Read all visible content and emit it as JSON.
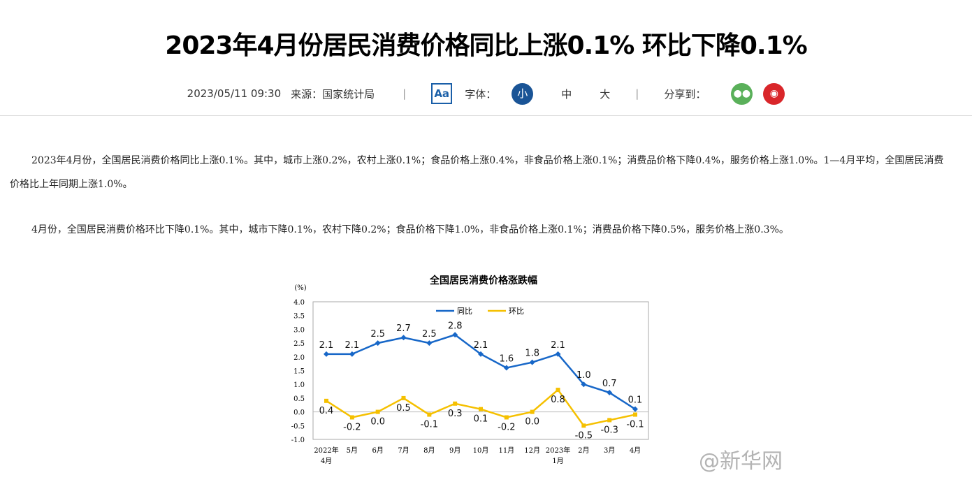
{
  "article": {
    "title": "2023年4月份居民消费价格同比上涨0.1% 环比下降0.1%",
    "datetime": "2023/05/11 09:30",
    "source": "来源：国家统计局",
    "font_icon": "Aa",
    "font_label": "字体：",
    "font_sizes": [
      "小",
      "中",
      "大"
    ],
    "share_label": "分享到：",
    "share_icons": [
      "wechat-icon",
      "weibo-icon"
    ],
    "paragraphs": [
      "2023年4月份，全国居民消费价格同比上涨0.1%。其中，城市上涨0.2%，农村上涨0.1%；食品价格上涨0.4%，非食品价格上涨0.1%；消费品价格下降0.4%，服务价格上涨1.0%。1—4月平均，全国居民消费价格比上年同期上涨1.0%。",
      "4月份，全国居民消费价格环比下降0.1%。其中，城市下降0.1%，农村下降0.2%；食品价格下降1.0%，非食品价格上涨0.1%；消费品价格下降0.5%，服务价格上涨0.3%。"
    ],
    "watermark": "@新华网"
  },
  "chart_data": {
    "type": "line",
    "title": "全国居民消费价格涨跌幅",
    "ylabel": "(%)",
    "ylim": [
      -1.0,
      4.0
    ],
    "yticks": [
      "4.0",
      "3.5",
      "3.0",
      "2.5",
      "2.0",
      "1.5",
      "1.0",
      "0.5",
      "0.0",
      "-0.5",
      "-1.0"
    ],
    "categories": [
      "2022年\n4月",
      "5月",
      "6月",
      "7月",
      "8月",
      "9月",
      "10月",
      "11月",
      "12月",
      "2023年\n1月",
      "2月",
      "3月",
      "4月"
    ],
    "legend": "top-center",
    "series": [
      {
        "name": "同比",
        "color": "#1767c8",
        "values": [
          2.1,
          2.1,
          2.5,
          2.7,
          2.5,
          2.8,
          2.1,
          1.6,
          1.8,
          2.1,
          1.0,
          0.7,
          0.1
        ]
      },
      {
        "name": "环比",
        "color": "#f5c000",
        "values": [
          0.4,
          -0.2,
          0.0,
          0.5,
          -0.1,
          0.3,
          0.1,
          -0.2,
          0.0,
          0.8,
          -0.5,
          -0.3,
          -0.1
        ]
      }
    ]
  }
}
